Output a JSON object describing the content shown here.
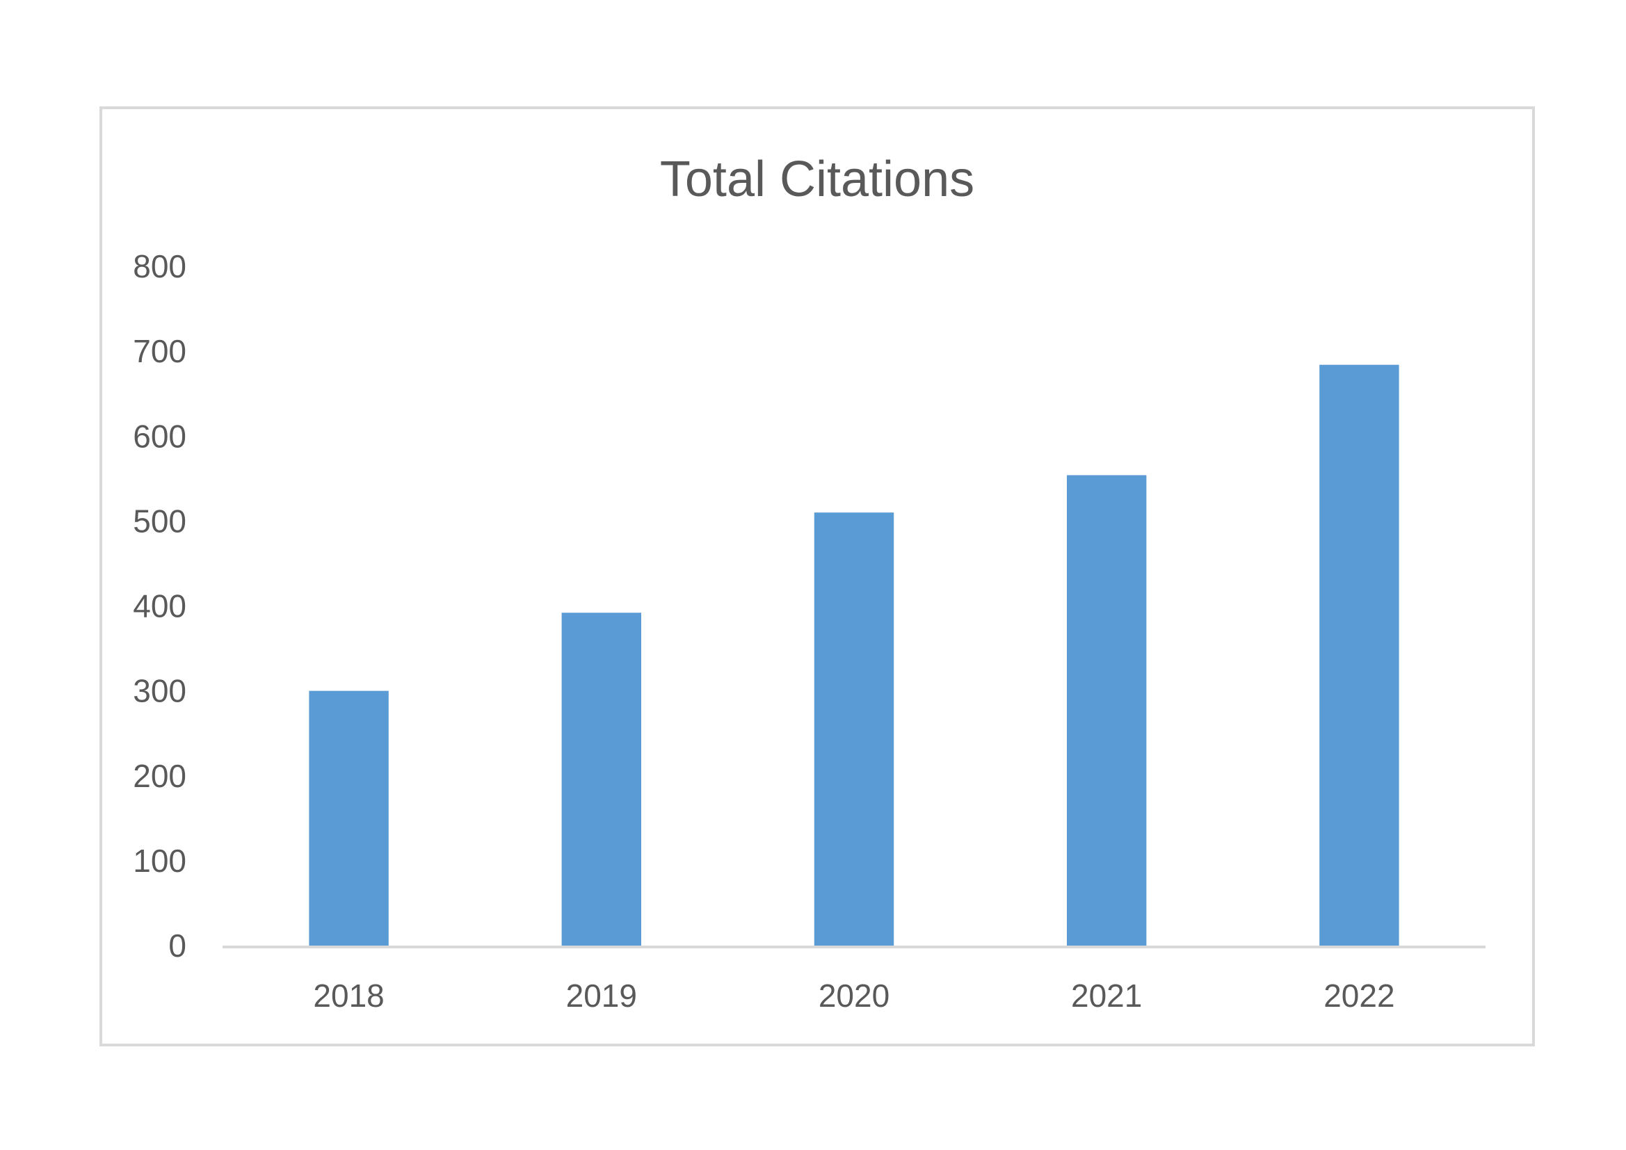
{
  "chart_data": {
    "type": "bar",
    "title": "Total Citations",
    "xlabel": "",
    "ylabel": "",
    "categories": [
      "2018",
      "2019",
      "2020",
      "2021",
      "2022"
    ],
    "values": [
      300,
      392,
      510,
      554,
      684
    ],
    "ylim": [
      0,
      800
    ],
    "yticks": [
      "0",
      "100",
      "200",
      "300",
      "400",
      "500",
      "600",
      "700",
      "800"
    ],
    "grid": false,
    "legend": "none",
    "bar_color": "#5b9bd5",
    "axis_color": "#d9d9d9",
    "text_color": "#595959"
  }
}
